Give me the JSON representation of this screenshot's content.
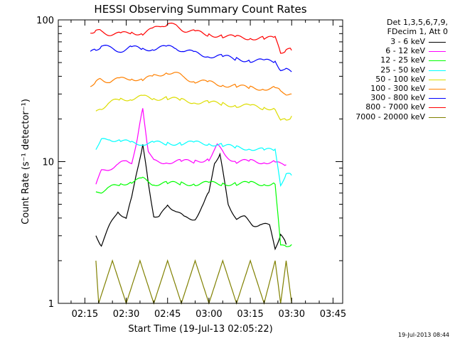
{
  "chart_data": {
    "type": "line",
    "title": "HESSI Observing Summary Count Rates",
    "xlabel": "Start Time (19-Jul-13 02:05:22)",
    "ylabel": "Count Rate (s⁻¹ detector⁻¹)",
    "ylog": true,
    "ylim": [
      1,
      100
    ],
    "xlim": [
      "02:05:22",
      "03:48:30"
    ],
    "x_ticks": [
      "02:15",
      "02:30",
      "02:45",
      "03:00",
      "03:15",
      "03:30",
      "03:45"
    ],
    "y_ticks": [
      "1",
      "10",
      "100"
    ],
    "legend_header": [
      "Det 1,3,5,6,7,9,",
      "FDecim 1, Att 0"
    ],
    "legend_position": "right",
    "series": [
      {
        "name": "3 - 6 keV",
        "color": "#000000",
        "x": [
          "02:19",
          "02:21",
          "02:24",
          "02:27",
          "02:30",
          "02:32",
          "02:34",
          "02:36",
          "02:38",
          "02:40",
          "02:42",
          "02:45",
          "02:48",
          "02:51",
          "02:55",
          "02:58",
          "03:00",
          "03:02",
          "03:04",
          "03:07",
          "03:10",
          "03:13",
          "03:16",
          "03:19",
          "03:22",
          "03:24",
          "03:26",
          "03:28",
          "03:30"
        ],
        "y": [
          3.0,
          2.6,
          3.5,
          4.5,
          4.0,
          5.5,
          9.0,
          13.0,
          7.0,
          4.2,
          4.0,
          5.0,
          4.5,
          4.0,
          4.0,
          5.0,
          6.0,
          10.0,
          11.0,
          5.0,
          4.0,
          4.0,
          3.6,
          3.6,
          3.5,
          2.5,
          3.0,
          2.6,
          null
        ]
      },
      {
        "name": "6 - 12 keV",
        "color": "#ff00ff",
        "x": [
          "02:19",
          "02:21",
          "02:24",
          "02:27",
          "02:30",
          "02:32",
          "02:34",
          "02:36",
          "02:38",
          "02:40",
          "02:45",
          "02:50",
          "02:55",
          "03:00",
          "03:03",
          "03:06",
          "03:10",
          "03:15",
          "03:20",
          "03:24",
          "03:26",
          "03:28",
          "03:30"
        ],
        "y": [
          7.0,
          8.5,
          9.0,
          9.5,
          10.0,
          10.0,
          14.0,
          24.0,
          12.0,
          10.0,
          10.0,
          10.0,
          10.0,
          10.5,
          13.0,
          11.0,
          10.0,
          10.0,
          10.0,
          10.0,
          9.5,
          9.5,
          null
        ]
      },
      {
        "name": "12 - 25 keV",
        "color": "#00ff00",
        "x": [
          "02:19",
          "02:21",
          "02:24",
          "02:28",
          "02:32",
          "02:36",
          "02:40",
          "02:45",
          "02:50",
          "02:55",
          "03:00",
          "03:05",
          "03:10",
          "03:15",
          "03:20",
          "03:24",
          "03:26",
          "03:28",
          "03:30"
        ],
        "y": [
          6.0,
          6.2,
          6.5,
          7.0,
          7.2,
          7.5,
          7.0,
          7.0,
          7.0,
          7.0,
          7.0,
          7.0,
          7.0,
          7.0,
          7.0,
          7.0,
          2.5,
          2.6,
          2.6
        ]
      },
      {
        "name": "25 - 50 keV",
        "color": "#00ffff",
        "x": [
          "02:19",
          "02:21",
          "02:24",
          "02:28",
          "02:32",
          "02:36",
          "02:40",
          "02:45",
          "02:50",
          "02:55",
          "03:00",
          "03:05",
          "03:10",
          "03:15",
          "03:20",
          "03:24",
          "03:26",
          "03:28",
          "03:30"
        ],
        "y": [
          12.5,
          14.0,
          14.5,
          14.0,
          13.5,
          13.5,
          13.5,
          13.5,
          13.5,
          13.5,
          13.5,
          13.0,
          12.5,
          12.5,
          12.0,
          12.0,
          7.0,
          8.0,
          8.0
        ]
      },
      {
        "name": "50 - 100 keV",
        "color": "#dddd00",
        "x": [
          "02:19",
          "02:21",
          "02:24",
          "02:28",
          "02:32",
          "02:36",
          "02:40",
          "02:45",
          "02:50",
          "02:55",
          "03:00",
          "03:05",
          "03:10",
          "03:15",
          "03:20",
          "03:24",
          "03:26",
          "03:28",
          "03:30"
        ],
        "y": [
          22.0,
          24.0,
          26.0,
          27.5,
          28.0,
          28.5,
          28.0,
          28.0,
          27.0,
          26.5,
          26.0,
          25.5,
          25.0,
          24.5,
          24.0,
          24.0,
          19.0,
          20.0,
          21.0
        ]
      },
      {
        "name": "100 - 300 keV",
        "color": "#ff8000",
        "x": [
          "02:17",
          "02:19",
          "02:21",
          "02:24",
          "02:28",
          "02:32",
          "02:36",
          "02:40",
          "02:45",
          "02:48",
          "02:51",
          "02:55",
          "03:00",
          "03:05",
          "03:10",
          "03:15",
          "03:20",
          "03:24",
          "03:26",
          "03:28",
          "03:30"
        ],
        "y": [
          35.0,
          36.0,
          38.0,
          37.0,
          38.0,
          39.0,
          37.5,
          40.0,
          43.0,
          42.0,
          39.0,
          37.0,
          36.0,
          35.0,
          34.0,
          33.0,
          33.0,
          33.0,
          31.0,
          30.5,
          30.0
        ]
      },
      {
        "name": "300 - 800 keV",
        "color": "#0000ff",
        "x": [
          "02:17",
          "02:19",
          "02:21",
          "02:24",
          "02:28",
          "02:32",
          "02:36",
          "02:40",
          "02:45",
          "02:48",
          "02:51",
          "02:55",
          "03:00",
          "03:05",
          "03:10",
          "03:15",
          "03:20",
          "03:24",
          "03:26",
          "03:28",
          "03:30"
        ],
        "y": [
          58.0,
          62.0,
          66.0,
          63.0,
          61.0,
          64.0,
          62.0,
          63.0,
          64.0,
          63.0,
          61.0,
          58.0,
          56.0,
          55.0,
          53.0,
          52.0,
          51.0,
          51.0,
          45.0,
          44.0,
          43.0
        ]
      },
      {
        "name": "800 - 7000 keV",
        "color": "#ff0000",
        "x": [
          "02:17",
          "02:19",
          "02:21",
          "02:24",
          "02:28",
          "02:32",
          "02:36",
          "02:40",
          "02:43",
          "02:45",
          "02:48",
          "02:51",
          "02:55",
          "03:00",
          "03:05",
          "03:10",
          "03:15",
          "03:20",
          "03:24",
          "03:26",
          "03:28",
          "03:30"
        ],
        "y": [
          83.0,
          84.0,
          82.0,
          80.0,
          79.0,
          82.0,
          80.0,
          86.0,
          92.0,
          94.0,
          90.0,
          85.0,
          82.0,
          79.0,
          77.0,
          75.0,
          75.0,
          74.0,
          74.0,
          60.0,
          61.0,
          61.0
        ]
      },
      {
        "name": "7000 - 20000 keV",
        "color": "#808000",
        "x": [
          "02:19",
          "02:20",
          "02:25",
          "02:30",
          "02:35",
          "02:40",
          "02:45",
          "02:50",
          "02:55",
          "03:00",
          "03:05",
          "03:10",
          "03:15",
          "03:20",
          "03:24",
          "03:26",
          "03:28",
          "03:30"
        ],
        "y": [
          2.0,
          1.0,
          2.0,
          1.0,
          2.0,
          1.0,
          2.0,
          1.0,
          2.0,
          1.0,
          2.0,
          1.0,
          2.0,
          1.0,
          2.0,
          1.0,
          2.0,
          1.0
        ]
      }
    ]
  },
  "timestamp": "19-Jul-2013 08:44"
}
